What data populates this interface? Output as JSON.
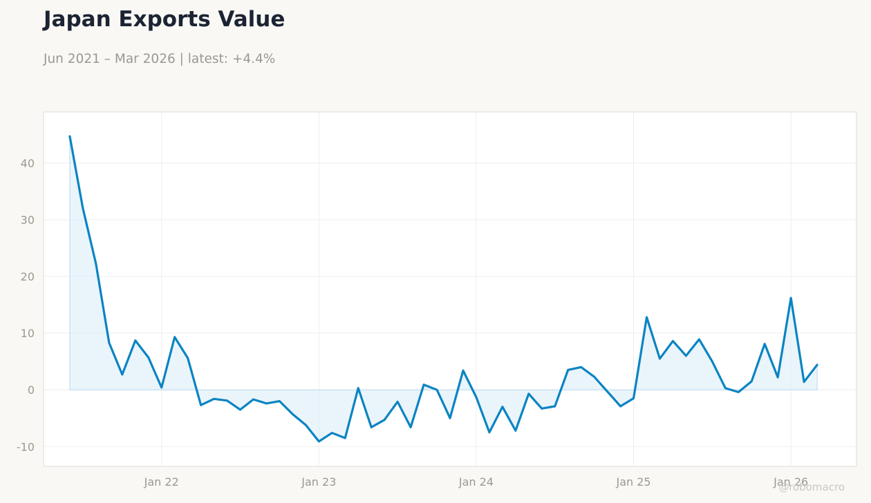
{
  "header": {
    "title": "Japan Exports Value",
    "subtitle": "Jun 2021 – Mar 2026 | latest: +4.4%"
  },
  "watermark": "@robomacro",
  "colors": {
    "line": "#0a84c2",
    "fill": "#dcedf9",
    "background": "#f9f8f5",
    "plot_background": "#ffffff",
    "grid": "#eeeeee",
    "frame": "#dcdbd6",
    "tick_text": "#9a9892"
  },
  "chart_data": {
    "type": "area",
    "title": "Japan Exports Value",
    "xlabel": "",
    "ylabel": "",
    "x_tick_labels": [
      "Jan 22",
      "Jan 23",
      "Jan 24",
      "Jan 25",
      "Jan 26"
    ],
    "y_ticks": [
      -10,
      0,
      10,
      20,
      30,
      40
    ],
    "xlim": [
      "2021-04",
      "2026-06"
    ],
    "ylim": [
      -13.5,
      49
    ],
    "grid": true,
    "baseline": 0,
    "series": [
      {
        "x": [
          "2021-06",
          "2021-07",
          "2021-08",
          "2021-09",
          "2021-10",
          "2021-11",
          "2021-12",
          "2022-01",
          "2022-02",
          "2022-03",
          "2022-04",
          "2022-05",
          "2022-06",
          "2022-07",
          "2022-08",
          "2022-09",
          "2022-10",
          "2022-11",
          "2022-12",
          "2023-01",
          "2023-02",
          "2023-03",
          "2023-04",
          "2023-05",
          "2023-06",
          "2023-07",
          "2023-08",
          "2023-09",
          "2023-10",
          "2023-11",
          "2023-12",
          "2024-01",
          "2024-02",
          "2024-03",
          "2024-04",
          "2024-05",
          "2024-06",
          "2024-07",
          "2024-08",
          "2024-09",
          "2024-10",
          "2024-11",
          "2024-12",
          "2025-01",
          "2025-02",
          "2025-03",
          "2025-04",
          "2025-05",
          "2025-06",
          "2025-07",
          "2025-08",
          "2025-09",
          "2025-10",
          "2025-11",
          "2025-12",
          "2026-01",
          "2026-02",
          "2026-03"
        ],
        "values": [
          44.7,
          32.0,
          22.2,
          8.3,
          2.7,
          8.7,
          5.7,
          0.4,
          9.3,
          5.6,
          -2.7,
          -1.6,
          -1.9,
          -3.5,
          -1.7,
          -2.4,
          -2.0,
          -4.3,
          -6.2,
          -9.1,
          -7.6,
          -8.5,
          0.3,
          -6.6,
          -5.3,
          -2.1,
          -6.6,
          0.9,
          0.0,
          -5.0,
          3.4,
          -1.3,
          -7.5,
          -3.0,
          -7.2,
          -0.7,
          -3.3,
          -2.9,
          3.5,
          4.0,
          2.3,
          -0.3,
          -2.9,
          -1.5,
          12.8,
          5.5,
          8.6,
          6.0,
          8.9,
          5.0,
          0.3,
          -0.4,
          1.5,
          8.1,
          2.2,
          16.2,
          1.4,
          4.4
        ]
      }
    ]
  }
}
